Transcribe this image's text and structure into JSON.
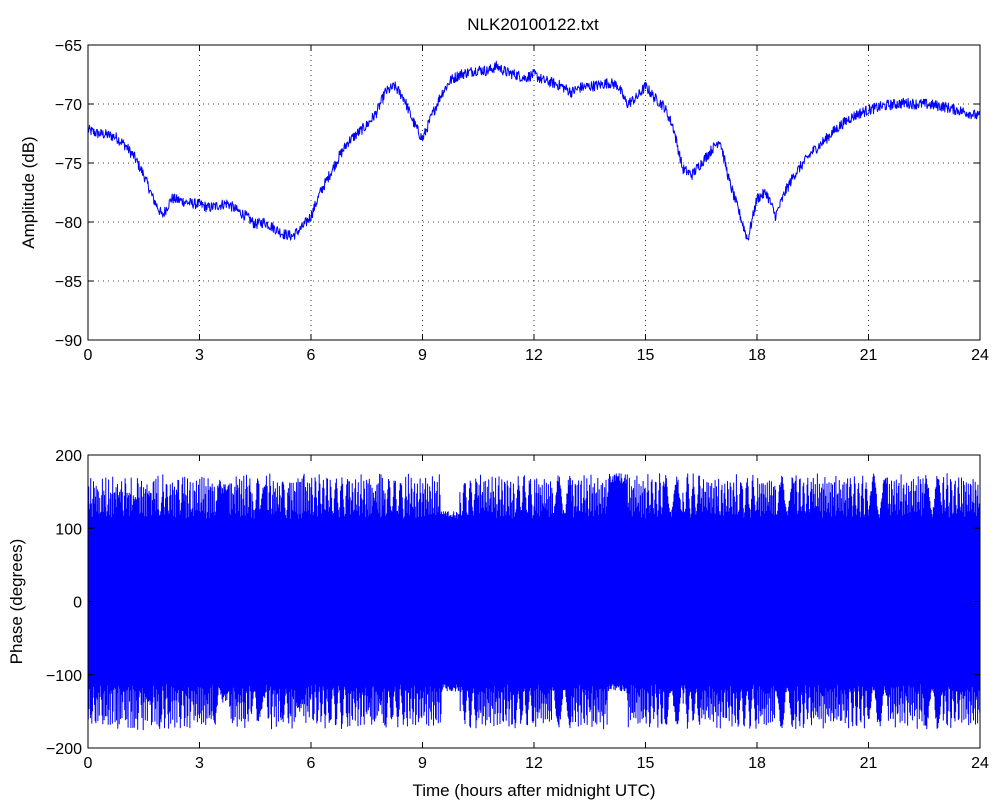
{
  "figure": {
    "title": "NLK20100122.txt"
  },
  "chart_data": [
    {
      "type": "line",
      "title": "NLK20100122.txt",
      "xlabel": "",
      "ylabel": "Amplitude (dB)",
      "xlim": [
        0,
        24
      ],
      "ylim": [
        -90,
        -65
      ],
      "xticks": [
        0,
        3,
        6,
        9,
        12,
        15,
        18,
        21,
        24
      ],
      "yticks": [
        -90,
        -85,
        -80,
        -75,
        -70,
        -65
      ],
      "grid": true,
      "color": "#0000ff",
      "series": [
        {
          "x": [
            0,
            0.25,
            0.5,
            0.75,
            1.0,
            1.25,
            1.5,
            1.75,
            2.0,
            2.25,
            2.5,
            2.75,
            3.0,
            3.25,
            3.5,
            3.75,
            4.0,
            4.25,
            4.5,
            4.75,
            5.0,
            5.25,
            5.5,
            5.75,
            6.0,
            6.25,
            6.5,
            6.75,
            7.0,
            7.25,
            7.5,
            7.75,
            8.0,
            8.25,
            8.5,
            8.75,
            9.0,
            9.25,
            9.5,
            9.75,
            10.0,
            10.25,
            10.5,
            10.75,
            11.0,
            11.25,
            11.5,
            11.75,
            12.0,
            12.25,
            12.5,
            12.75,
            13.0,
            13.25,
            13.5,
            13.75,
            14.0,
            14.25,
            14.5,
            14.75,
            15.0,
            15.25,
            15.5,
            15.75,
            16.0,
            16.25,
            16.5,
            16.75,
            17.0,
            17.25,
            17.5,
            17.75,
            18.0,
            18.25,
            18.5,
            18.75,
            19.0,
            19.25,
            19.5,
            19.75,
            20.0,
            20.25,
            20.5,
            20.75,
            21.0,
            21.25,
            21.5,
            21.75,
            22.0,
            22.25,
            22.5,
            22.75,
            23.0,
            23.25,
            23.5,
            23.75,
            24.0
          ],
          "values": [
            -72.2,
            -72.5,
            -72.6,
            -72.8,
            -73.5,
            -74.5,
            -76.0,
            -78.0,
            -79.5,
            -78.0,
            -78.2,
            -78.4,
            -78.5,
            -78.8,
            -78.6,
            -78.4,
            -79.0,
            -79.5,
            -80.2,
            -80.0,
            -80.5,
            -81.0,
            -81.2,
            -80.5,
            -79.5,
            -77.5,
            -76.0,
            -74.5,
            -73.2,
            -72.5,
            -71.8,
            -70.8,
            -69.0,
            -68.5,
            -69.5,
            -71.5,
            -73.0,
            -71.0,
            -69.2,
            -68.0,
            -67.5,
            -67.3,
            -67.1,
            -67.2,
            -66.8,
            -67.3,
            -67.5,
            -67.8,
            -67.5,
            -68.0,
            -68.2,
            -68.5,
            -69.0,
            -68.6,
            -68.5,
            -68.4,
            -68.2,
            -68.4,
            -70.0,
            -69.5,
            -68.5,
            -69.5,
            -70.2,
            -72.0,
            -75.5,
            -76.0,
            -75.0,
            -74.0,
            -73.0,
            -76.5,
            -79.0,
            -81.5,
            -78.0,
            -77.5,
            -79.5,
            -77.5,
            -76.0,
            -75.0,
            -74.0,
            -73.3,
            -72.5,
            -71.8,
            -71.2,
            -70.8,
            -70.5,
            -70.3,
            -70.1,
            -70.0,
            -69.9,
            -70.0,
            -70.0,
            -70.1,
            -70.2,
            -70.4,
            -70.6,
            -70.8,
            -71.1
          ]
        }
      ]
    },
    {
      "type": "line",
      "title": "",
      "xlabel": "Time (hours after midnight UTC)",
      "ylabel": "Phase (degrees)",
      "xlim": [
        0,
        24
      ],
      "ylim": [
        -200,
        200
      ],
      "xticks": [
        0,
        3,
        6,
        9,
        12,
        15,
        18,
        21,
        24
      ],
      "yticks": [
        -200,
        -100,
        0,
        100,
        200
      ],
      "grid": false,
      "color": "#0000ff",
      "series": [
        {
          "wraps_between": [
            -180,
            180
          ],
          "x": [
            0,
            0.1,
            0.2,
            0.3,
            0.4,
            0.5,
            0.6,
            0.7,
            0.8,
            0.9,
            1.0,
            1.1,
            1.2,
            1.3,
            1.4,
            1.5,
            1.6,
            1.7,
            1.8,
            1.9,
            2.0,
            2.2,
            2.4,
            2.6,
            2.8,
            3.0,
            3.2,
            3.4,
            3.6,
            3.8,
            4.0,
            4.2,
            4.4,
            4.6,
            4.8,
            5.0,
            5.2,
            5.4,
            5.6,
            5.8,
            6.0,
            6.5,
            7.0,
            7.5,
            8.0,
            8.5,
            9.0,
            9.5,
            10.0,
            10.5,
            11.0,
            11.5,
            12.0,
            12.5,
            13.0,
            13.5,
            14.0,
            14.5,
            15.0,
            15.5,
            16.0,
            16.5,
            17.0,
            17.5,
            18.0,
            18.5,
            19.0,
            19.5,
            20.0,
            20.5,
            21.0,
            21.5,
            22.0,
            22.5,
            23.0,
            23.5,
            24.0
          ],
          "values": [
            170,
            -160,
            140,
            -120,
            90,
            -60,
            20,
            10,
            -40,
            80,
            -130,
            160,
            -170,
            120,
            -90,
            60,
            -20,
            150,
            -150,
            100,
            0,
            -80,
            170,
            -160,
            130,
            -100,
            60,
            -30,
            170,
            -170,
            140,
            -110,
            80,
            -50,
            20,
            -170,
            150,
            -130,
            100,
            -70,
            40,
            -160,
            160,
            -140,
            110,
            -80,
            50,
            -170,
            170,
            -150,
            120,
            -90,
            60,
            -170,
            160,
            -140,
            100,
            -70,
            40,
            -160,
            170,
            -150,
            120,
            -90,
            60,
            -170,
            160,
            -150,
            130,
            -110,
            90,
            -70,
            50,
            -170,
            160,
            -150,
            140
          ]
        }
      ]
    }
  ]
}
